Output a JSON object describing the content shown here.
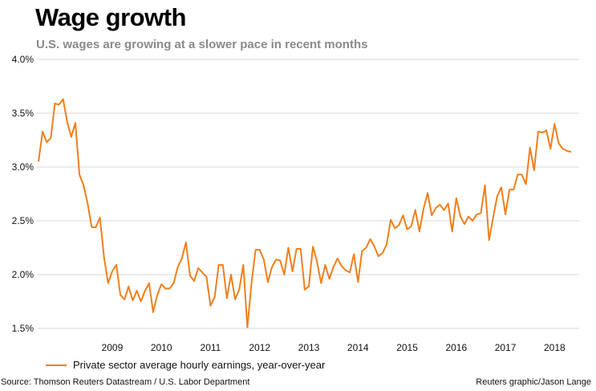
{
  "header": {
    "title": "Wage growth",
    "subtitle": "U.S. wages are growing at a slower pace in recent months"
  },
  "legend": {
    "label": "Private sector average hourly earnings, year-over-year"
  },
  "footer": {
    "source": "Source: Thomson Reuters Datastream / U.S. Labor Department",
    "credit": "Reuters graphic/Jason Lange"
  },
  "colors": {
    "line": "#f07f1b",
    "grid": "#d9d9d9",
    "text": "#111111"
  },
  "chart_data": {
    "type": "line",
    "title": "Wage growth",
    "subtitle": "U.S. wages are growing at a slower pace in recent months",
    "y_tick_labels": [
      "1.5%",
      "2.0%",
      "2.5%",
      "3.0%",
      "3.5%",
      "4.0%"
    ],
    "y_ticks": [
      1.5,
      2.0,
      2.5,
      3.0,
      3.5,
      4.0
    ],
    "ylim": [
      1.5,
      4.0
    ],
    "x_tick_labels": [
      "2009",
      "2010",
      "2011",
      "2012",
      "2013",
      "2014",
      "2015",
      "2016",
      "2017",
      "2018"
    ],
    "x_ticks": [
      2009,
      2010,
      2011,
      2012,
      2013,
      2014,
      2015,
      2016,
      2017,
      2018
    ],
    "xlim": [
      2008.0,
      2019.0
    ],
    "grid": "horizontal",
    "legend_position": "bottom-left",
    "series": [
      {
        "name": "Private sector average hourly earnings, year-over-year",
        "start_year": 2008,
        "start_month": 1,
        "values": [
          3.05,
          3.33,
          3.23,
          3.27,
          3.59,
          3.58,
          3.63,
          3.42,
          3.28,
          3.41,
          2.93,
          2.83,
          2.66,
          2.44,
          2.44,
          2.53,
          2.16,
          1.92,
          2.03,
          2.09,
          1.81,
          1.77,
          1.89,
          1.76,
          1.85,
          1.75,
          1.85,
          1.92,
          1.65,
          1.81,
          1.91,
          1.87,
          1.87,
          1.92,
          2.07,
          2.15,
          2.3,
          1.99,
          1.94,
          2.06,
          2.02,
          1.98,
          1.71,
          1.79,
          2.09,
          2.09,
          1.78,
          2.0,
          1.77,
          1.86,
          2.09,
          1.51,
          1.92,
          2.23,
          2.23,
          2.14,
          1.93,
          2.07,
          2.14,
          2.13,
          2.0,
          2.25,
          2.03,
          2.24,
          2.24,
          1.86,
          1.89,
          2.26,
          2.12,
          1.92,
          2.09,
          1.96,
          2.07,
          2.15,
          2.08,
          2.04,
          2.02,
          2.19,
          1.93,
          2.22,
          2.25,
          2.33,
          2.26,
          2.17,
          2.2,
          2.28,
          2.51,
          2.43,
          2.46,
          2.55,
          2.42,
          2.45,
          2.6,
          2.4,
          2.61,
          2.76,
          2.55,
          2.62,
          2.65,
          2.6,
          2.66,
          2.4,
          2.71,
          2.54,
          2.47,
          2.54,
          2.5,
          2.56,
          2.57,
          2.83,
          2.32,
          2.53,
          2.73,
          2.81,
          2.56,
          2.79,
          2.79,
          2.93,
          2.93,
          2.84,
          3.18,
          2.97,
          3.33,
          3.32,
          3.34,
          3.17,
          3.4,
          3.22,
          3.17,
          3.15,
          3.14
        ]
      }
    ]
  }
}
